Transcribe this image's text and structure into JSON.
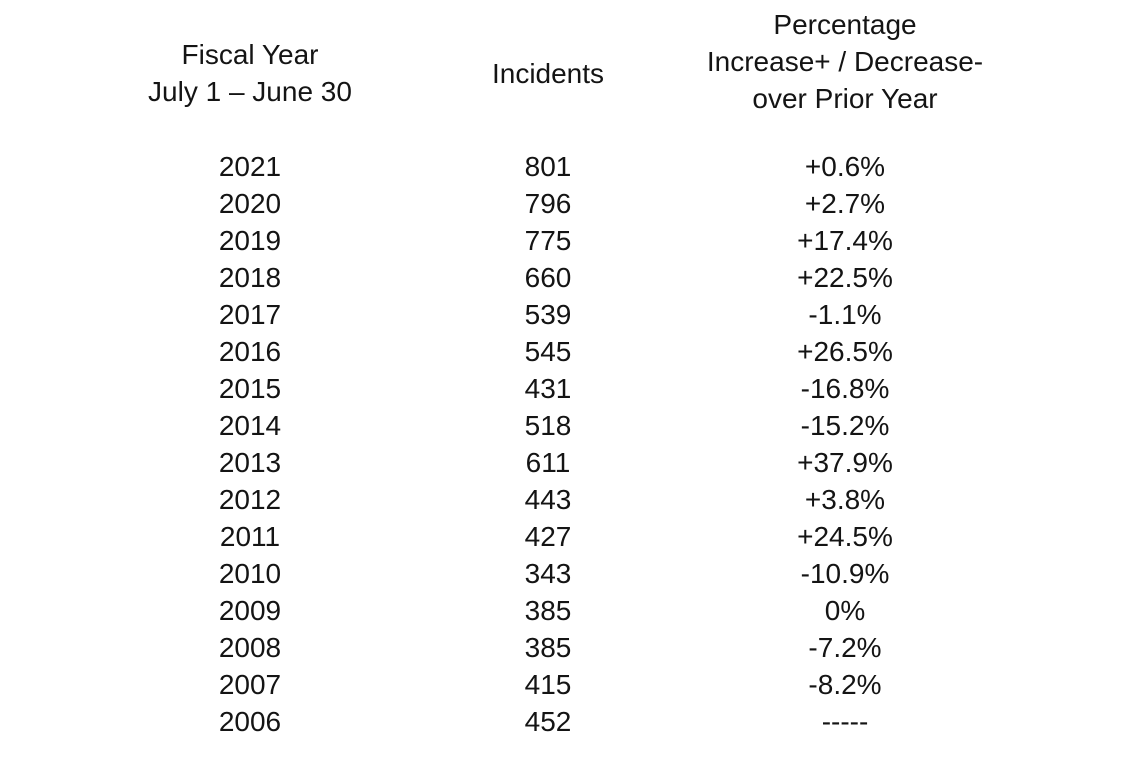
{
  "colors": {
    "background": "#ffffff",
    "text": "#141414"
  },
  "header": {
    "col1_line1": "Fiscal Year",
    "col1_line2": "July 1 – June 30",
    "col2_line1": "Incidents",
    "col3_line1": "Percentage",
    "col3_line2": "Increase+ / Decrease-",
    "col3_line3": "over Prior Year"
  },
  "chart_data": {
    "type": "table",
    "columns": [
      "Fiscal Year July 1 – June 30",
      "Incidents",
      "Percentage Increase+ / Decrease- over Prior Year"
    ],
    "rows": [
      {
        "fiscal_year": "2021",
        "incidents": "801",
        "pct_change": "+0.6%"
      },
      {
        "fiscal_year": "2020",
        "incidents": "796",
        "pct_change": "+2.7%"
      },
      {
        "fiscal_year": "2019",
        "incidents": "775",
        "pct_change": "+17.4%"
      },
      {
        "fiscal_year": "2018",
        "incidents": "660",
        "pct_change": "+22.5%"
      },
      {
        "fiscal_year": "2017",
        "incidents": "539",
        "pct_change": "-1.1%"
      },
      {
        "fiscal_year": "2016",
        "incidents": "545",
        "pct_change": "+26.5%"
      },
      {
        "fiscal_year": "2015",
        "incidents": "431",
        "pct_change": "-16.8%"
      },
      {
        "fiscal_year": "2014",
        "incidents": "518",
        "pct_change": "-15.2%"
      },
      {
        "fiscal_year": "2013",
        "incidents": "611",
        "pct_change": "+37.9%"
      },
      {
        "fiscal_year": "2012",
        "incidents": "443",
        "pct_change": "+3.8%"
      },
      {
        "fiscal_year": "2011",
        "incidents": "427",
        "pct_change": "+24.5%"
      },
      {
        "fiscal_year": "2010",
        "incidents": "343",
        "pct_change": "-10.9%"
      },
      {
        "fiscal_year": "2009",
        "incidents": "385",
        "pct_change": "0%"
      },
      {
        "fiscal_year": "2008",
        "incidents": "385",
        "pct_change": "-7.2%"
      },
      {
        "fiscal_year": "2007",
        "incidents": "415",
        "pct_change": "-8.2%"
      },
      {
        "fiscal_year": "2006",
        "incidents": "452",
        "pct_change": "-----"
      }
    ]
  }
}
